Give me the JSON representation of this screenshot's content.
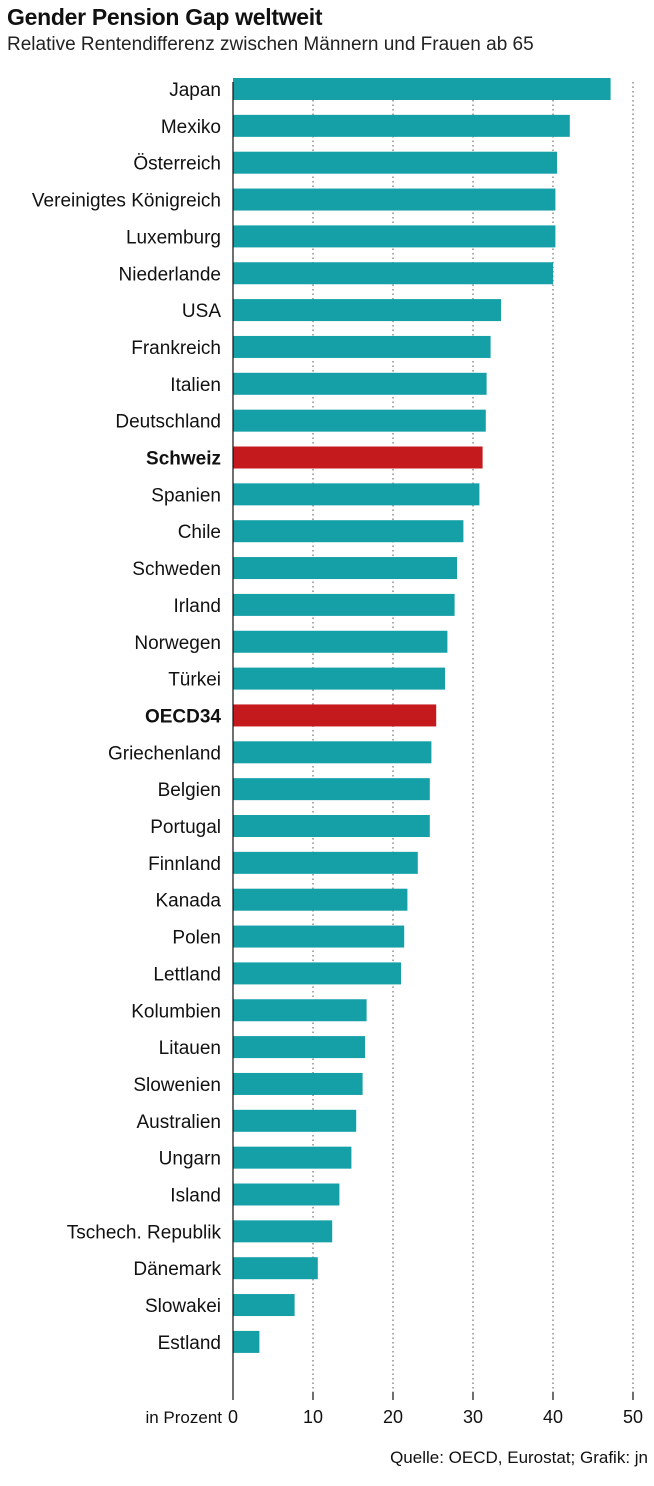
{
  "chart_data": {
    "type": "bar",
    "orientation": "horizontal",
    "title": "Gender Pension Gap weltweit",
    "subtitle": "Relative Rentendifferenz zwischen Männern und Frauen ab 65",
    "xlabel": "in Prozent",
    "xlim": [
      0,
      50
    ],
    "xticks": [
      0,
      10,
      20,
      30,
      40,
      50
    ],
    "grid": "vertical dotted",
    "source": "Quelle: OECD, Eurostat; Grafik: jn",
    "colors": {
      "default": "#15a0a8",
      "highlight": "#c41a1d"
    },
    "categories": [
      "Japan",
      "Mexiko",
      "Österreich",
      "Vereinigtes Königreich",
      "Luxemburg",
      "Niederlande",
      "USA",
      "Frankreich",
      "Italien",
      "Deutschland",
      "Schweiz",
      "Spanien",
      "Chile",
      "Schweden",
      "Irland",
      "Norwegen",
      "Türkei",
      "OECD34",
      "Griechenland",
      "Belgien",
      "Portugal",
      "Finnland",
      "Kanada",
      "Polen",
      "Lettland",
      "Kolumbien",
      "Litauen",
      "Slowenien",
      "Australien",
      "Ungarn",
      "Island",
      "Tschech. Republik",
      "Dänemark",
      "Slowakei",
      "Estland"
    ],
    "values": [
      47.2,
      42.1,
      40.5,
      40.3,
      40.3,
      40.0,
      33.5,
      32.2,
      31.7,
      31.6,
      31.2,
      30.8,
      28.8,
      28.0,
      27.7,
      26.8,
      26.5,
      25.4,
      24.8,
      24.6,
      24.6,
      23.1,
      21.8,
      21.4,
      21.0,
      16.7,
      16.5,
      16.2,
      15.4,
      14.8,
      13.3,
      12.4,
      10.6,
      7.7,
      3.3
    ],
    "highlight": [
      "Schweiz",
      "OECD34"
    ]
  }
}
